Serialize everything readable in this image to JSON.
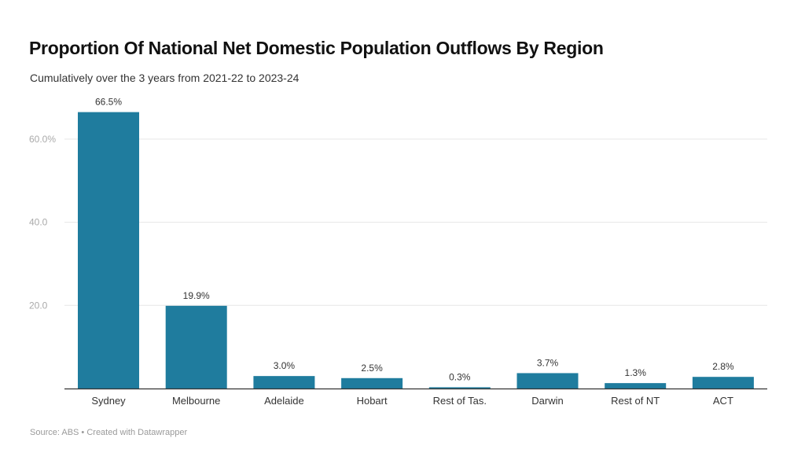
{
  "header": {
    "title": "Proportion Of National Net Domestic Population Outflows By Region",
    "subtitle": "Cumulatively over the 3 years from 2021-22 to 2023-24"
  },
  "footer": {
    "text": "Source: ABS • Created with Datawrapper"
  },
  "colors": {
    "bar": "#1f7c9e",
    "grid": "#e6e6e6",
    "axis": "#333333"
  },
  "chart_data": {
    "type": "bar",
    "title": "Proportion Of National Net Domestic Population Outflows By Region",
    "subtitle": "Cumulatively over the 3 years from 2021-22 to 2023-24",
    "xlabel": "",
    "ylabel": "",
    "categories": [
      "Sydney",
      "Melbourne",
      "Adelaide",
      "Hobart",
      "Rest of Tas.",
      "Darwin",
      "Rest of NT",
      "ACT"
    ],
    "values": [
      66.5,
      19.9,
      3.0,
      2.5,
      0.3,
      3.7,
      1.3,
      2.8
    ],
    "value_labels": [
      "66.5%",
      "19.9%",
      "3.0%",
      "2.5%",
      "0.3%",
      "3.7%",
      "1.3%",
      "2.8%"
    ],
    "ylim": [
      0,
      70
    ],
    "yticks": [
      20,
      40,
      60
    ],
    "ytick_labels": [
      "20.0",
      "40.0",
      "60.0%"
    ],
    "grid": true,
    "legend": "none"
  }
}
